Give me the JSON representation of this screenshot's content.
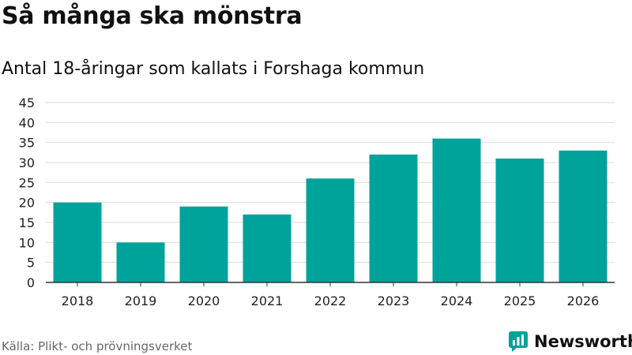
{
  "header": {
    "title": "Så många ska mönstra",
    "subtitle": "Antal 18-åringar som kallats i Forshaga kommun"
  },
  "footer": {
    "source": "Källa: Plikt- och prövningsverket",
    "brand": "Newsworthy"
  },
  "colors": {
    "bar": "#00a39a",
    "grid": "#dddddd",
    "axis": "#333333",
    "text": "#222222",
    "brand": "#00a39a"
  },
  "chart_data": {
    "type": "bar",
    "categories": [
      "2018",
      "2019",
      "2020",
      "2021",
      "2022",
      "2023",
      "2024",
      "2025",
      "2026"
    ],
    "values": [
      20,
      10,
      19,
      17,
      26,
      32,
      36,
      31,
      33
    ],
    "title": "Så många ska mönstra",
    "subtitle": "Antal 18-åringar som kallats i Forshaga kommun",
    "xlabel": "",
    "ylabel": "",
    "ylim": [
      0,
      45
    ],
    "yticks": [
      0,
      5,
      10,
      15,
      20,
      25,
      30,
      35,
      40,
      45
    ],
    "grid": true,
    "legend": "none"
  }
}
